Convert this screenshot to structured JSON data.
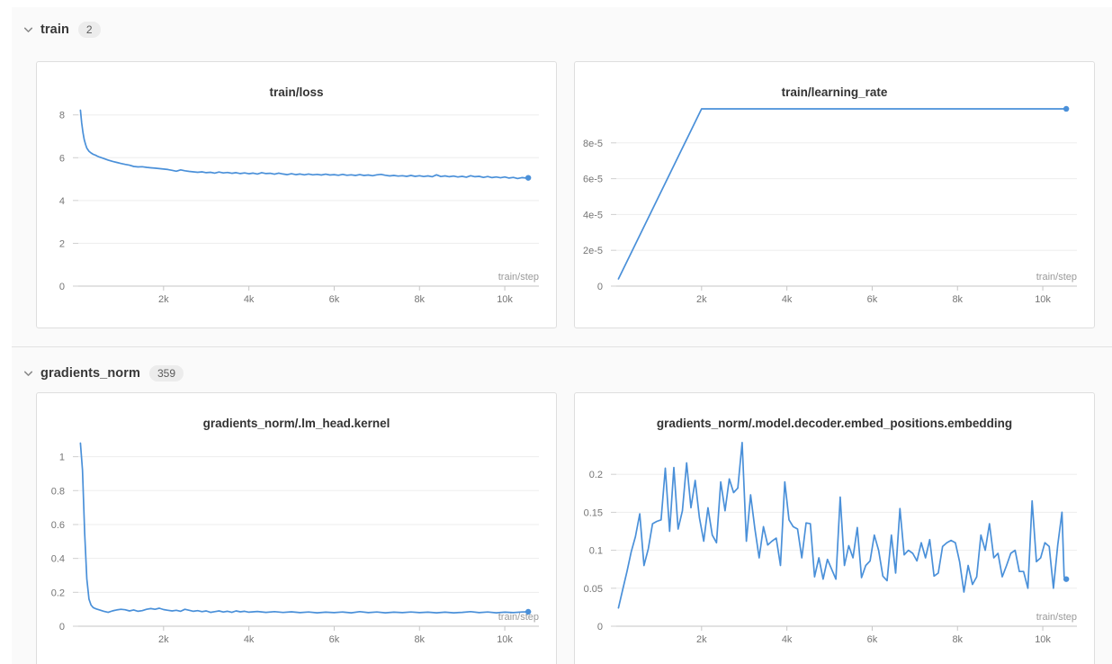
{
  "sections": [
    {
      "label": "train",
      "count": "2",
      "chart_refs": [
        0,
        1
      ]
    },
    {
      "label": "gradients_norm",
      "count": "359",
      "chart_refs": [
        2,
        3
      ]
    }
  ],
  "colors": {
    "line": "#4a90d9",
    "grid": "#ededed",
    "axis": "#c6c6c6",
    "tick_label": "#757575",
    "title": "#333333",
    "axis_hint": "#9a9a9a"
  },
  "chart_data": [
    {
      "type": "line",
      "title": "train/loss",
      "xlabel": "train/step",
      "xlim": [
        0,
        10800
      ],
      "ylim": [
        0,
        8.45
      ],
      "xticks": [
        [
          2000,
          "2k"
        ],
        [
          4000,
          "4k"
        ],
        [
          6000,
          "6k"
        ],
        [
          8000,
          "8k"
        ],
        [
          10000,
          "10k"
        ]
      ],
      "yticks": [
        [
          0,
          "0"
        ],
        [
          2,
          "2"
        ],
        [
          4,
          "4"
        ],
        [
          6,
          "6"
        ],
        [
          8,
          "8"
        ]
      ],
      "legend": "none",
      "grid": true,
      "end_marker": true,
      "points": [
        [
          50,
          8.22
        ],
        [
          80,
          7.62
        ],
        [
          110,
          7.18
        ],
        [
          140,
          6.85
        ],
        [
          170,
          6.62
        ],
        [
          200,
          6.45
        ],
        [
          250,
          6.3
        ],
        [
          300,
          6.22
        ],
        [
          350,
          6.16
        ],
        [
          400,
          6.12
        ],
        [
          450,
          6.07
        ],
        [
          500,
          6.03
        ],
        [
          600,
          5.96
        ],
        [
          700,
          5.89
        ],
        [
          800,
          5.83
        ],
        [
          900,
          5.78
        ],
        [
          1000,
          5.73
        ],
        [
          1100,
          5.69
        ],
        [
          1200,
          5.65
        ],
        [
          1300,
          5.59
        ],
        [
          1400,
          5.57
        ],
        [
          1500,
          5.58
        ],
        [
          1600,
          5.55
        ],
        [
          1700,
          5.53
        ],
        [
          1800,
          5.51
        ],
        [
          1900,
          5.49
        ],
        [
          2000,
          5.47
        ],
        [
          2100,
          5.45
        ],
        [
          2200,
          5.41
        ],
        [
          2300,
          5.37
        ],
        [
          2400,
          5.43
        ],
        [
          2500,
          5.39
        ],
        [
          2600,
          5.36
        ],
        [
          2700,
          5.34
        ],
        [
          2800,
          5.32
        ],
        [
          2900,
          5.34
        ],
        [
          3000,
          5.3
        ],
        [
          3100,
          5.32
        ],
        [
          3200,
          5.28
        ],
        [
          3300,
          5.33
        ],
        [
          3400,
          5.29
        ],
        [
          3500,
          5.31
        ],
        [
          3600,
          5.27
        ],
        [
          3700,
          5.3
        ],
        [
          3800,
          5.26
        ],
        [
          3900,
          5.29
        ],
        [
          4000,
          5.25
        ],
        [
          4100,
          5.28
        ],
        [
          4200,
          5.24
        ],
        [
          4300,
          5.3
        ],
        [
          4400,
          5.26
        ],
        [
          4500,
          5.27
        ],
        [
          4600,
          5.23
        ],
        [
          4700,
          5.28
        ],
        [
          4800,
          5.24
        ],
        [
          4900,
          5.21
        ],
        [
          5000,
          5.25
        ],
        [
          5100,
          5.21
        ],
        [
          5200,
          5.24
        ],
        [
          5300,
          5.2
        ],
        [
          5400,
          5.24
        ],
        [
          5500,
          5.2
        ],
        [
          5600,
          5.22
        ],
        [
          5700,
          5.19
        ],
        [
          5800,
          5.23
        ],
        [
          5900,
          5.19
        ],
        [
          6000,
          5.21
        ],
        [
          6100,
          5.18
        ],
        [
          6200,
          5.22
        ],
        [
          6300,
          5.18
        ],
        [
          6400,
          5.2
        ],
        [
          6500,
          5.17
        ],
        [
          6600,
          5.21
        ],
        [
          6700,
          5.17
        ],
        [
          6800,
          5.19
        ],
        [
          6900,
          5.16
        ],
        [
          7000,
          5.2
        ],
        [
          7100,
          5.22
        ],
        [
          7200,
          5.18
        ],
        [
          7300,
          5.15
        ],
        [
          7400,
          5.17
        ],
        [
          7500,
          5.14
        ],
        [
          7600,
          5.16
        ],
        [
          7700,
          5.13
        ],
        [
          7800,
          5.17
        ],
        [
          7900,
          5.13
        ],
        [
          8000,
          5.16
        ],
        [
          8100,
          5.12
        ],
        [
          8200,
          5.15
        ],
        [
          8300,
          5.11
        ],
        [
          8400,
          5.2
        ],
        [
          8500,
          5.12
        ],
        [
          8600,
          5.15
        ],
        [
          8700,
          5.11
        ],
        [
          8800,
          5.14
        ],
        [
          8900,
          5.1
        ],
        [
          9000,
          5.13
        ],
        [
          9100,
          5.09
        ],
        [
          9200,
          5.16
        ],
        [
          9300,
          5.11
        ],
        [
          9400,
          5.13
        ],
        [
          9500,
          5.08
        ],
        [
          9600,
          5.12
        ],
        [
          9700,
          5.07
        ],
        [
          9800,
          5.1
        ],
        [
          9900,
          5.06
        ],
        [
          10000,
          5.1
        ],
        [
          10100,
          5.05
        ],
        [
          10200,
          5.08
        ],
        [
          10300,
          5.03
        ],
        [
          10400,
          5.07
        ],
        [
          10500,
          5.05
        ],
        [
          10550,
          5.06
        ]
      ]
    },
    {
      "type": "line",
      "title": "train/learning_rate",
      "xlabel": "train/step",
      "xlim": [
        0,
        10800
      ],
      "ylim": [
        0,
        0.000101
      ],
      "xticks": [
        [
          2000,
          "2k"
        ],
        [
          4000,
          "4k"
        ],
        [
          6000,
          "6k"
        ],
        [
          8000,
          "8k"
        ],
        [
          10000,
          "10k"
        ]
      ],
      "yticks": [
        [
          0,
          "0"
        ],
        [
          2e-05,
          "2e-5"
        ],
        [
          4e-05,
          "4e-5"
        ],
        [
          6e-05,
          "6e-5"
        ],
        [
          8e-05,
          "8e-5"
        ]
      ],
      "legend": "none",
      "grid": true,
      "end_marker": true,
      "points": [
        [
          50,
          4e-06
        ],
        [
          2000,
          9.9e-05
        ],
        [
          10550,
          9.9e-05
        ]
      ]
    },
    {
      "type": "line",
      "title": "gradients_norm/.lm_head.kernel",
      "xlabel": "train/step",
      "xlim": [
        0,
        10800
      ],
      "ylim": [
        0,
        1.12
      ],
      "xticks": [
        [
          2000,
          "2k"
        ],
        [
          4000,
          "4k"
        ],
        [
          6000,
          "6k"
        ],
        [
          8000,
          "8k"
        ],
        [
          10000,
          "10k"
        ]
      ],
      "yticks": [
        [
          0,
          "0"
        ],
        [
          0.2,
          "0.2"
        ],
        [
          0.4,
          "0.4"
        ],
        [
          0.6,
          "0.6"
        ],
        [
          0.8,
          "0.8"
        ],
        [
          1,
          "1"
        ]
      ],
      "legend": "none",
      "grid": true,
      "end_marker": true,
      "points": [
        [
          50,
          1.08
        ],
        [
          100,
          0.92
        ],
        [
          150,
          0.55
        ],
        [
          200,
          0.28
        ],
        [
          250,
          0.16
        ],
        [
          300,
          0.125
        ],
        [
          350,
          0.11
        ],
        [
          400,
          0.104
        ],
        [
          450,
          0.1
        ],
        [
          500,
          0.096
        ],
        [
          600,
          0.088
        ],
        [
          700,
          0.082
        ],
        [
          800,
          0.09
        ],
        [
          900,
          0.096
        ],
        [
          1000,
          0.1
        ],
        [
          1100,
          0.097
        ],
        [
          1200,
          0.09
        ],
        [
          1300,
          0.096
        ],
        [
          1400,
          0.088
        ],
        [
          1500,
          0.092
        ],
        [
          1600,
          0.1
        ],
        [
          1700,
          0.104
        ],
        [
          1800,
          0.1
        ],
        [
          1900,
          0.106
        ],
        [
          2000,
          0.098
        ],
        [
          2100,
          0.094
        ],
        [
          2200,
          0.09
        ],
        [
          2300,
          0.094
        ],
        [
          2400,
          0.088
        ],
        [
          2500,
          0.1
        ],
        [
          2600,
          0.094
        ],
        [
          2700,
          0.088
        ],
        [
          2800,
          0.092
        ],
        [
          2900,
          0.086
        ],
        [
          3000,
          0.09
        ],
        [
          3100,
          0.082
        ],
        [
          3200,
          0.086
        ],
        [
          3300,
          0.09
        ],
        [
          3400,
          0.084
        ],
        [
          3500,
          0.088
        ],
        [
          3600,
          0.082
        ],
        [
          3700,
          0.09
        ],
        [
          3800,
          0.085
        ],
        [
          3900,
          0.088
        ],
        [
          4000,
          0.083
        ],
        [
          4200,
          0.087
        ],
        [
          4400,
          0.082
        ],
        [
          4600,
          0.086
        ],
        [
          4800,
          0.081
        ],
        [
          5000,
          0.085
        ],
        [
          5200,
          0.08
        ],
        [
          5400,
          0.084
        ],
        [
          5600,
          0.079
        ],
        [
          5800,
          0.083
        ],
        [
          6000,
          0.08
        ],
        [
          6200,
          0.084
        ],
        [
          6400,
          0.079
        ],
        [
          6600,
          0.086
        ],
        [
          6800,
          0.08
        ],
        [
          7000,
          0.084
        ],
        [
          7200,
          0.079
        ],
        [
          7400,
          0.083
        ],
        [
          7600,
          0.08
        ],
        [
          7800,
          0.084
        ],
        [
          8000,
          0.08
        ],
        [
          8200,
          0.083
        ],
        [
          8400,
          0.079
        ],
        [
          8600,
          0.083
        ],
        [
          8800,
          0.079
        ],
        [
          9000,
          0.082
        ],
        [
          9200,
          0.086
        ],
        [
          9400,
          0.08
        ],
        [
          9600,
          0.084
        ],
        [
          9800,
          0.079
        ],
        [
          10000,
          0.083
        ],
        [
          10200,
          0.08
        ],
        [
          10400,
          0.084
        ],
        [
          10550,
          0.085
        ]
      ]
    },
    {
      "type": "line",
      "title": "gradients_norm/.model.decoder.embed_positions.embedding",
      "xlabel": "train/step",
      "xlim": [
        0,
        10800
      ],
      "ylim": [
        0,
        0.25
      ],
      "xticks": [
        [
          2000,
          "2k"
        ],
        [
          4000,
          "4k"
        ],
        [
          6000,
          "6k"
        ],
        [
          8000,
          "8k"
        ],
        [
          10000,
          "10k"
        ]
      ],
      "yticks": [
        [
          0,
          "0"
        ],
        [
          0.05,
          "0.05"
        ],
        [
          0.1,
          "0.1"
        ],
        [
          0.15,
          "0.15"
        ],
        [
          0.2,
          "0.2"
        ]
      ],
      "legend": "none",
      "grid": true,
      "end_marker": true,
      "points": [
        [
          50,
          0.024
        ],
        [
          150,
          0.048
        ],
        [
          250,
          0.072
        ],
        [
          350,
          0.098
        ],
        [
          450,
          0.118
        ],
        [
          550,
          0.148
        ],
        [
          650,
          0.08
        ],
        [
          750,
          0.102
        ],
        [
          850,
          0.135
        ],
        [
          950,
          0.138
        ],
        [
          1050,
          0.14
        ],
        [
          1150,
          0.208
        ],
        [
          1250,
          0.125
        ],
        [
          1350,
          0.209
        ],
        [
          1450,
          0.128
        ],
        [
          1550,
          0.152
        ],
        [
          1650,
          0.215
        ],
        [
          1750,
          0.156
        ],
        [
          1850,
          0.192
        ],
        [
          1950,
          0.143
        ],
        [
          2050,
          0.112
        ],
        [
          2150,
          0.156
        ],
        [
          2250,
          0.12
        ],
        [
          2350,
          0.11
        ],
        [
          2450,
          0.19
        ],
        [
          2550,
          0.152
        ],
        [
          2650,
          0.194
        ],
        [
          2750,
          0.176
        ],
        [
          2850,
          0.182
        ],
        [
          2950,
          0.242
        ],
        [
          3050,
          0.112
        ],
        [
          3150,
          0.173
        ],
        [
          3250,
          0.128
        ],
        [
          3350,
          0.09
        ],
        [
          3450,
          0.131
        ],
        [
          3550,
          0.107
        ],
        [
          3650,
          0.112
        ],
        [
          3750,
          0.116
        ],
        [
          3850,
          0.08
        ],
        [
          3950,
          0.19
        ],
        [
          4050,
          0.14
        ],
        [
          4150,
          0.131
        ],
        [
          4250,
          0.128
        ],
        [
          4350,
          0.09
        ],
        [
          4450,
          0.136
        ],
        [
          4550,
          0.135
        ],
        [
          4650,
          0.065
        ],
        [
          4750,
          0.09
        ],
        [
          4850,
          0.062
        ],
        [
          4950,
          0.088
        ],
        [
          5050,
          0.075
        ],
        [
          5150,
          0.062
        ],
        [
          5250,
          0.17
        ],
        [
          5350,
          0.08
        ],
        [
          5450,
          0.106
        ],
        [
          5550,
          0.09
        ],
        [
          5650,
          0.13
        ],
        [
          5750,
          0.064
        ],
        [
          5850,
          0.08
        ],
        [
          5950,
          0.086
        ],
        [
          6050,
          0.12
        ],
        [
          6150,
          0.1
        ],
        [
          6250,
          0.066
        ],
        [
          6350,
          0.06
        ],
        [
          6450,
          0.12
        ],
        [
          6550,
          0.07
        ],
        [
          6650,
          0.155
        ],
        [
          6750,
          0.094
        ],
        [
          6850,
          0.1
        ],
        [
          6950,
          0.096
        ],
        [
          7050,
          0.086
        ],
        [
          7150,
          0.11
        ],
        [
          7250,
          0.09
        ],
        [
          7350,
          0.114
        ],
        [
          7450,
          0.066
        ],
        [
          7550,
          0.07
        ],
        [
          7650,
          0.105
        ],
        [
          7750,
          0.11
        ],
        [
          7850,
          0.113
        ],
        [
          7950,
          0.11
        ],
        [
          8050,
          0.085
        ],
        [
          8150,
          0.045
        ],
        [
          8250,
          0.08
        ],
        [
          8350,
          0.055
        ],
        [
          8450,
          0.065
        ],
        [
          8550,
          0.12
        ],
        [
          8650,
          0.1
        ],
        [
          8750,
          0.135
        ],
        [
          8850,
          0.09
        ],
        [
          8950,
          0.096
        ],
        [
          9050,
          0.065
        ],
        [
          9150,
          0.08
        ],
        [
          9250,
          0.096
        ],
        [
          9350,
          0.1
        ],
        [
          9450,
          0.072
        ],
        [
          9550,
          0.072
        ],
        [
          9650,
          0.05
        ],
        [
          9750,
          0.165
        ],
        [
          9850,
          0.085
        ],
        [
          9950,
          0.09
        ],
        [
          10050,
          0.11
        ],
        [
          10150,
          0.105
        ],
        [
          10250,
          0.05
        ],
        [
          10350,
          0.107
        ],
        [
          10450,
          0.15
        ],
        [
          10500,
          0.065
        ],
        [
          10550,
          0.062
        ]
      ]
    }
  ]
}
